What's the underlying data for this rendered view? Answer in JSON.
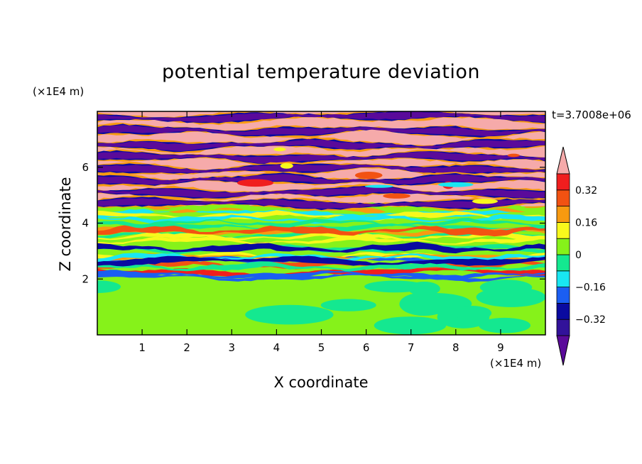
{
  "chart_data": {
    "type": "heatmap",
    "title": "potential temperature deviation",
    "xlabel": "X coordinate",
    "ylabel": "Z coordinate",
    "x_unit": "(×1E4 m)",
    "y_unit": "(×1E4 m)",
    "timestamp": "t=3.7008e+06",
    "xlim": [
      0,
      10
    ],
    "ylim": [
      0,
      8
    ],
    "x_ticks": [
      "1",
      "2",
      "3",
      "4",
      "5",
      "6",
      "7",
      "8",
      "9"
    ],
    "y_ticks": [
      "2",
      "4",
      "6"
    ],
    "colorbar": {
      "levels": [
        -0.4,
        -0.32,
        -0.24,
        -0.16,
        -0.08,
        0,
        0.08,
        0.16,
        0.24,
        0.32,
        0.4
      ],
      "tick_labels": [
        "0.32",
        "0.16",
        "0",
        "−0.16",
        "−0.32"
      ],
      "tick_values": [
        0.32,
        0.16,
        0,
        -0.16,
        -0.32
      ],
      "colors": [
        "#5a0a9a",
        "#32129a",
        "#0a0aa0",
        "#1b5ef2",
        "#19e6f2",
        "#14e890",
        "#86f21a",
        "#f8f81c",
        "#f89a10",
        "#f25212",
        "#f01e1e",
        "#f6aaaa"
      ]
    },
    "layers": [
      {
        "z_range": [
          0,
          2
        ],
        "pattern": "near-neutral, values around -0.08 to 0.08"
      },
      {
        "z_range": [
          2,
          4.6
        ],
        "pattern": "layered bands, values -0.32 to 0.32"
      },
      {
        "z_range": [
          4.6,
          8
        ],
        "pattern": "strong alternating bands, values below -0.4 and above 0.4"
      }
    ]
  }
}
